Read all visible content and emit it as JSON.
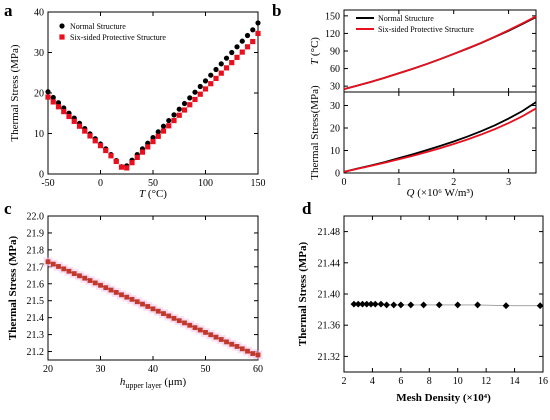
{
  "chart_data": [
    {
      "panel": "a",
      "type": "scatter",
      "xlabel": "T (°C)",
      "xlabel_var": "T",
      "xlabel_unit": " (°C)",
      "ylabel": "Thermal Stress (MPa)",
      "xlim": [
        -50,
        150
      ],
      "ylim": [
        0,
        40
      ],
      "xticks": [
        -50,
        0,
        50,
        100,
        150
      ],
      "yticks": [
        0,
        10,
        20,
        30,
        40
      ],
      "legend_position": "top-left",
      "grid": false,
      "series": [
        {
          "name": "Normal Structure",
          "marker": "circle",
          "color": "#000000",
          "x": [
            -50,
            -45,
            -40,
            -35,
            -30,
            -25,
            -20,
            -15,
            -10,
            -5,
            0,
            5,
            10,
            15,
            20,
            25,
            30,
            35,
            40,
            45,
            50,
            55,
            60,
            65,
            70,
            75,
            80,
            85,
            90,
            95,
            100,
            105,
            110,
            115,
            120,
            125,
            130,
            135,
            140,
            145,
            150
          ],
          "y": [
            20.3,
            18.9,
            17.6,
            16.3,
            15.0,
            13.8,
            12.5,
            11.2,
            9.9,
            8.7,
            7.4,
            6.2,
            4.8,
            3.3,
            1.8,
            2.0,
            3.4,
            4.8,
            6.2,
            7.6,
            9.0,
            10.4,
            11.8,
            13.2,
            14.6,
            16.0,
            17.4,
            18.8,
            20.2,
            21.6,
            23.0,
            24.4,
            25.8,
            27.2,
            28.6,
            30.0,
            31.4,
            32.8,
            34.2,
            35.6,
            37.3
          ]
        },
        {
          "name": "Six-sided Protective Structure",
          "marker": "square",
          "color": "#e8101e",
          "x": [
            -50,
            -45,
            -40,
            -35,
            -30,
            -25,
            -20,
            -15,
            -10,
            -5,
            0,
            5,
            10,
            15,
            20,
            25,
            30,
            35,
            40,
            45,
            50,
            55,
            60,
            65,
            70,
            75,
            80,
            85,
            90,
            95,
            100,
            105,
            110,
            115,
            120,
            125,
            130,
            135,
            140,
            145,
            150
          ],
          "y": [
            19.0,
            17.8,
            16.6,
            15.4,
            14.2,
            13.0,
            11.8,
            10.6,
            9.4,
            8.2,
            7.0,
            5.8,
            4.5,
            3.1,
            1.7,
            1.5,
            2.8,
            4.1,
            5.4,
            6.7,
            8.0,
            9.3,
            10.6,
            11.9,
            13.2,
            14.5,
            15.8,
            17.1,
            18.4,
            19.7,
            21.0,
            22.3,
            23.6,
            24.9,
            26.2,
            27.5,
            28.8,
            30.1,
            31.4,
            32.7,
            34.7
          ]
        }
      ]
    },
    {
      "panel": "b",
      "type": "line",
      "xlabel": "Q (×10⁶ W/m³)",
      "xlabel_var": "Q",
      "xlabel_unit": " (×10⁶ W/m³)",
      "xlim": [
        0,
        3.5
      ],
      "xticks": [
        0,
        1,
        2,
        3
      ],
      "legend_position": "top-left",
      "grid": false,
      "subplots": [
        {
          "ylabel": "T (°C)",
          "ylabel_var": "T",
          "ylabel_unit": " (°C)",
          "ylim": [
            20,
            160
          ],
          "yticks": [
            30,
            60,
            90,
            120,
            150
          ],
          "x": [
            0,
            0.25,
            0.5,
            0.75,
            1,
            1.25,
            1.5,
            1.75,
            2,
            2.25,
            2.5,
            2.75,
            3,
            3.25,
            3.5
          ],
          "series": [
            {
              "name": "Normal Structure",
              "color": "#000000",
              "values": [
                25,
                31,
                37.5,
                44.5,
                52,
                59.5,
                67.5,
                76,
                85,
                94,
                103.5,
                114,
                124.5,
                136,
                148
              ]
            },
            {
              "name": "Six-sided Protective Structure",
              "color": "#e8101e",
              "values": [
                25,
                31,
                37.5,
                44.5,
                52,
                59.5,
                67.5,
                76,
                85,
                94.5,
                104,
                114.5,
                125.5,
                137,
                149
              ]
            }
          ]
        },
        {
          "ylabel": "Thermal Stress(MPa)",
          "ylim": [
            0,
            36
          ],
          "yticks": [
            0,
            10,
            20,
            30
          ],
          "x": [
            0,
            0.25,
            0.5,
            0.75,
            1,
            1.25,
            1.5,
            1.75,
            2,
            2.25,
            2.5,
            2.75,
            3,
            3.25,
            3.5
          ],
          "series": [
            {
              "name": "Normal Structure",
              "color": "#000000",
              "values": [
                0.5,
                2.0,
                3.4,
                4.9,
                6.6,
                8.3,
                10.1,
                12.0,
                14.0,
                16.2,
                18.6,
                21.2,
                24.2,
                27.5,
                31.5
              ]
            },
            {
              "name": "Six-sided Protective Structure",
              "color": "#e8101e",
              "values": [
                0.5,
                1.9,
                3.2,
                4.6,
                6.1,
                7.6,
                9.3,
                11.0,
                12.9,
                14.9,
                17.1,
                19.5,
                22.2,
                25.2,
                28.7
              ]
            }
          ]
        }
      ]
    },
    {
      "panel": "c",
      "type": "scatter",
      "xlabel": "h_upper layer (μm)",
      "xlabel_var": "h",
      "xlabel_sub": "upper layer",
      "xlabel_unit": " (μm)",
      "ylabel": "Thermal Stress (MPa)",
      "xlim": [
        20,
        60
      ],
      "ylim": [
        21.15,
        22.0
      ],
      "xticks": [
        20,
        30,
        40,
        50,
        60
      ],
      "yticks": [
        21.2,
        21.3,
        21.4,
        21.5,
        21.6,
        21.7,
        21.8,
        21.9,
        22.0
      ],
      "ytick_labels": [
        "21.2",
        "21.3",
        "21.4",
        "21.5",
        "21.6",
        "21.7",
        "21.8",
        "21.9",
        "22.0"
      ],
      "grid": false,
      "series": [
        {
          "marker": "square",
          "color": "#c0392b",
          "x": [
            20,
            21,
            22,
            23,
            24,
            25,
            26,
            27,
            28,
            29,
            30,
            31,
            32,
            33,
            34,
            35,
            36,
            37,
            38,
            39,
            40,
            41,
            42,
            43,
            44,
            45,
            46,
            47,
            48,
            49,
            50,
            51,
            52,
            53,
            54,
            55,
            56,
            57,
            58,
            59,
            60
          ],
          "y": [
            21.73,
            21.716,
            21.702,
            21.688,
            21.674,
            21.66,
            21.647,
            21.633,
            21.619,
            21.605,
            21.591,
            21.577,
            21.563,
            21.549,
            21.535,
            21.521,
            21.508,
            21.494,
            21.48,
            21.466,
            21.452,
            21.438,
            21.424,
            21.41,
            21.396,
            21.382,
            21.369,
            21.355,
            21.341,
            21.327,
            21.313,
            21.299,
            21.285,
            21.271,
            21.257,
            21.243,
            21.23,
            21.216,
            21.202,
            21.188,
            21.18
          ]
        }
      ]
    },
    {
      "panel": "d",
      "type": "line",
      "xlabel": "Mesh Density (×10⁴)",
      "ylabel": "Thermal Stress (MPa)",
      "xlim": [
        2,
        16
      ],
      "ylim": [
        21.3,
        21.5
      ],
      "xticks": [
        2,
        4,
        6,
        8,
        10,
        12,
        14,
        16
      ],
      "yticks": [
        21.32,
        21.36,
        21.4,
        21.44,
        21.48
      ],
      "ytick_labels": [
        "21.32",
        "21.36",
        "21.40",
        "21.44",
        "21.48"
      ],
      "grid": false,
      "series": [
        {
          "marker": "diamond",
          "color": "#000000",
          "x": [
            2.7,
            3.0,
            3.3,
            3.6,
            3.9,
            4.2,
            4.6,
            5.0,
            5.5,
            6.0,
            6.7,
            7.6,
            8.7,
            10.0,
            11.4,
            13.4,
            15.8
          ],
          "y": [
            21.387,
            21.387,
            21.387,
            21.387,
            21.387,
            21.387,
            21.387,
            21.386,
            21.386,
            21.386,
            21.386,
            21.386,
            21.386,
            21.386,
            21.386,
            21.385,
            21.385
          ]
        }
      ]
    }
  ]
}
